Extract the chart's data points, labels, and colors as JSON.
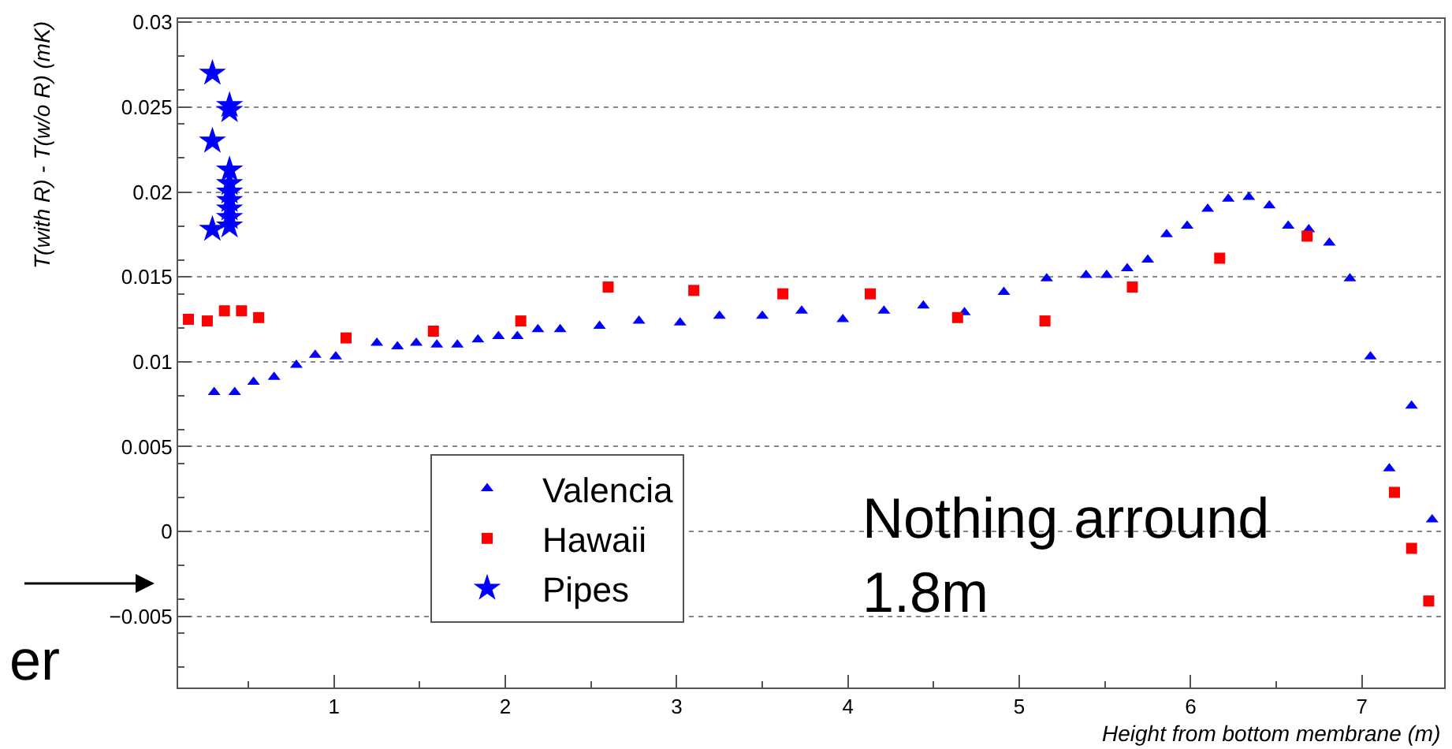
{
  "chart_data": {
    "type": "scatter",
    "xlabel": "Height from bottom membrane (m)",
    "ylabel": "T(with R) - T(w/o R) (mK)",
    "xlim": [
      0.09,
      7.48
    ],
    "ylim": [
      -0.0092,
      0.0302
    ],
    "xticks": [
      1,
      2,
      3,
      4,
      5,
      6,
      7
    ],
    "yticks": [
      {
        "value": -0.005,
        "label": "−0.005"
      },
      0,
      0.005,
      0.01,
      0.015,
      0.02,
      0.025,
      0.03
    ],
    "grid": "y",
    "legend": "bottom left",
    "annotations": [
      "Nothing arround\n1.8m",
      "er"
    ],
    "series": [
      {
        "name": "Valencia",
        "color": "#0000ff",
        "marker": "triangle",
        "x": [
          0.3,
          0.42,
          0.53,
          0.65,
          0.78,
          0.89,
          1.01,
          1.25,
          1.37,
          1.48,
          1.6,
          1.72,
          1.84,
          1.96,
          2.07,
          2.19,
          2.32,
          2.55,
          2.78,
          3.02,
          3.25,
          3.5,
          3.73,
          3.97,
          4.21,
          4.44,
          4.68,
          4.91,
          5.16,
          5.39,
          5.51,
          5.63,
          5.75,
          5.86,
          5.98,
          6.1,
          6.22,
          6.34,
          6.46,
          6.57,
          6.69,
          6.81,
          6.93,
          7.05,
          7.16,
          7.29,
          7.41
        ],
        "values": [
          0.0082,
          0.0082,
          0.0088,
          0.0091,
          0.0098,
          0.0104,
          0.0103,
          0.0111,
          0.0109,
          0.0111,
          0.011,
          0.011,
          0.0113,
          0.0115,
          0.0115,
          0.0119,
          0.0119,
          0.0121,
          0.0124,
          0.0123,
          0.0127,
          0.0127,
          0.013,
          0.0125,
          0.013,
          0.0133,
          0.0129,
          0.0141,
          0.0149,
          0.0151,
          0.0151,
          0.0155,
          0.016,
          0.0175,
          0.018,
          0.019,
          0.0196,
          0.0197,
          0.0192,
          0.018,
          0.0178,
          0.017,
          0.0149,
          0.0103,
          0.0037,
          0.0074,
          0.0007
        ]
      },
      {
        "name": "Hawaii",
        "color": "#ff0000",
        "marker": "square",
        "x": [
          0.15,
          0.26,
          0.36,
          0.46,
          0.56,
          1.07,
          1.58,
          2.09,
          2.6,
          3.1,
          3.62,
          4.13,
          4.64,
          5.15,
          5.66,
          6.17,
          6.68,
          7.19,
          7.29,
          7.39
        ],
        "values": [
          0.0125,
          0.0124,
          0.013,
          0.013,
          0.0126,
          0.0114,
          0.0118,
          0.0124,
          0.0144,
          0.0142,
          0.014,
          0.014,
          0.0126,
          0.0124,
          0.0144,
          0.0161,
          0.0174,
          0.0023,
          -0.001,
          -0.0041
        ]
      },
      {
        "name": "Pipes",
        "color": "#0000ff",
        "marker": "star",
        "x": [
          0.29,
          0.29,
          0.29,
          0.39,
          0.39,
          0.39,
          0.39,
          0.39,
          0.39,
          0.39,
          0.39,
          0.39
        ],
        "values": [
          0.027,
          0.023,
          0.0178,
          0.0251,
          0.0248,
          0.0213,
          0.0205,
          0.02,
          0.0195,
          0.019,
          0.0185,
          0.018
        ]
      }
    ]
  }
}
